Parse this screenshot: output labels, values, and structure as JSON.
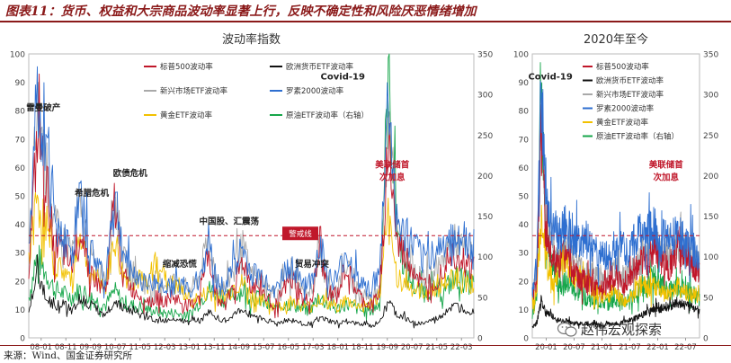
{
  "figure": {
    "title": "图表11：货币、权益和大宗商品波动率显著上行，反映不确定性和风险厌恶情绪增加",
    "source": "来源：Wind、国金证券研究所",
    "watermark": "赵伟宏观探索",
    "colors": {
      "sp500": "#c0172a",
      "eurofx": "#111111",
      "em": "#a9a9a9",
      "r2000": "#2e6fd0",
      "gold": "#f2c100",
      "oil": "#16a64a",
      "warn": "#c0172a",
      "frame": "#8b1a1a"
    }
  },
  "chart_data": [
    {
      "type": "line",
      "title": "波动率指数",
      "y_left": {
        "ylim": [
          0,
          100
        ],
        "ticks": [
          0,
          10,
          20,
          30,
          40,
          50,
          60,
          70,
          80,
          90,
          100
        ]
      },
      "y_right": {
        "ylim": [
          0,
          350
        ],
        "ticks": [
          0,
          50,
          100,
          150,
          200,
          250,
          300,
          350
        ]
      },
      "x_ticks": [
        "08-01",
        "08-11",
        "09-09",
        "10-07",
        "11-05",
        "12-03",
        "13-01",
        "13-11",
        "14-09",
        "15-07",
        "16-05",
        "17-03",
        "18-01",
        "18-11",
        "19-09",
        "20-07",
        "21-05",
        "22-03"
      ],
      "threshold": {
        "value": 36,
        "label": "警戒线"
      },
      "legend": [
        {
          "key": "sp500",
          "label": "标普500波动率"
        },
        {
          "key": "eurofx",
          "label": "欧洲货币ETF波动率"
        },
        {
          "key": "em",
          "label": "新兴市场ETF波动率"
        },
        {
          "key": "r2000",
          "label": "罗素2000波动率"
        },
        {
          "key": "gold",
          "label": "黄金ETF波动率"
        },
        {
          "key": "oil",
          "label": "原油ETF波动率（右轴）"
        }
      ],
      "annotations": [
        "雷曼破产",
        "希腊危机",
        "欧债危机",
        "缩减恐慌",
        "中国股、汇震荡",
        "贸易冲突",
        "Covid-19",
        "美联储首次加息"
      ],
      "events": [
        {
          "x": 0.09,
          "y": 80,
          "label": "雷曼破产"
        },
        {
          "x": 2.05,
          "y": 50,
          "label": "希腊危机"
        },
        {
          "x": 3.6,
          "y": 57,
          "label": "欧债危机"
        },
        {
          "x": 5.6,
          "y": 25,
          "label": "缩减恐慌"
        },
        {
          "x": 7.6,
          "y": 40,
          "label": "中国股、汇震荡"
        },
        {
          "x": 10.95,
          "y": 25,
          "label": "贸易冲突"
        },
        {
          "x": 12.2,
          "y": 91,
          "label": "Covid-19"
        },
        {
          "x": 14.2,
          "y": 60,
          "label": "美联储首次加息"
        }
      ],
      "series": [
        {
          "key": "sp500",
          "values": [
            24,
            70,
            55,
            33,
            30,
            24,
            40,
            25,
            19,
            16,
            48,
            22,
            17,
            15,
            13,
            14,
            13,
            14,
            12,
            11,
            16,
            30,
            14,
            12,
            20,
            27,
            18,
            18,
            13,
            12,
            18,
            20,
            13,
            13,
            30,
            16,
            14,
            25,
            18,
            13,
            11,
            16,
            70,
            34,
            28,
            24,
            18,
            20,
            22,
            30,
            30,
            26,
            25
          ]
        },
        {
          "key": "eurofx",
          "values": [
            9,
            22,
            15,
            11,
            12,
            10,
            14,
            12,
            10,
            8,
            13,
            11,
            9,
            8,
            7,
            6,
            6,
            7,
            6,
            7,
            6,
            9,
            7,
            6,
            8,
            10,
            8,
            7,
            6,
            5,
            6,
            6,
            5,
            5,
            7,
            6,
            5,
            6,
            5,
            5,
            4,
            6,
            13,
            8,
            7,
            5,
            5,
            6,
            7,
            10,
            11,
            10,
            9
          ]
        },
        {
          "key": "em",
          "values": [
            30,
            80,
            60,
            40,
            34,
            30,
            45,
            30,
            24,
            22,
            50,
            28,
            22,
            20,
            19,
            20,
            19,
            20,
            18,
            17,
            22,
            35,
            19,
            17,
            26,
            32,
            22,
            21,
            17,
            15,
            21,
            22,
            16,
            17,
            30,
            18,
            16,
            26,
            19,
            15,
            14,
            19,
            75,
            38,
            30,
            26,
            20,
            22,
            24,
            32,
            34,
            30,
            28
          ]
        },
        {
          "key": "r2000",
          "values": [
            30,
            85,
            65,
            42,
            36,
            30,
            50,
            32,
            26,
            22,
            52,
            30,
            23,
            21,
            19,
            19,
            18,
            19,
            18,
            17,
            22,
            34,
            19,
            18,
            27,
            31,
            22,
            22,
            19,
            17,
            24,
            25,
            20,
            19,
            33,
            21,
            20,
            30,
            23,
            19,
            17,
            22,
            85,
            40,
            34,
            32,
            28,
            29,
            31,
            35,
            36,
            33,
            32
          ]
        },
        {
          "key": "gold",
          "values": [
            28,
            50,
            38,
            26,
            24,
            20,
            38,
            24,
            20,
            18,
            35,
            22,
            20,
            20,
            19,
            30,
            20,
            18,
            16,
            13,
            14,
            16,
            15,
            14,
            18,
            19,
            15,
            14,
            12,
            11,
            12,
            13,
            11,
            11,
            14,
            12,
            11,
            13,
            12,
            11,
            12,
            15,
            40,
            22,
            19,
            17,
            16,
            17,
            18,
            20,
            22,
            20,
            19
          ]
        },
        {
          "key": "oil",
          "values": [
            50,
            100,
            80,
            60,
            55,
            50,
            60,
            52,
            45,
            40,
            58,
            45,
            40,
            38,
            35,
            32,
            30,
            31,
            28,
            30,
            45,
            60,
            55,
            45,
            55,
            58,
            50,
            48,
            38,
            35,
            42,
            40,
            35,
            36,
            50,
            40,
            35,
            42,
            38,
            33,
            34,
            42,
            320,
            140,
            80,
            65,
            55,
            60,
            55,
            65,
            75,
            70,
            65
          ]
        }
      ]
    },
    {
      "type": "line",
      "title": "2020年至今",
      "y_left": {
        "ylim": [
          0,
          100
        ],
        "ticks": [
          0,
          10,
          20,
          30,
          40,
          50,
          60,
          70,
          80,
          90,
          100
        ]
      },
      "y_right": {
        "ylim": [
          0,
          350
        ],
        "ticks": [
          0,
          50,
          100,
          150,
          200,
          250,
          300,
          350
        ]
      },
      "x_ticks": [
        "20-01",
        "20-07",
        "21-01",
        "21-07",
        "22-01",
        "22-07"
      ],
      "threshold": {
        "value": 36
      },
      "legend": [
        {
          "key": "sp500",
          "label": "标普500波动率"
        },
        {
          "key": "eurofx",
          "label": "欧洲货币ETF波动率"
        },
        {
          "key": "em",
          "label": "新兴市场ETF波动率"
        },
        {
          "key": "r2000",
          "label": "罗素2000波动率"
        },
        {
          "key": "gold",
          "label": "黄金ETF波动率"
        },
        {
          "key": "oil",
          "label": "原油ETF波动率（右轴）"
        }
      ],
      "annotations": [
        "Covid-19",
        "美联储首次加息"
      ],
      "events": [
        {
          "x": 0.15,
          "y": 91,
          "label": "Covid-19"
        },
        {
          "x": 4.3,
          "y": 60,
          "label": "美联储首次加息"
        }
      ],
      "series": [
        {
          "key": "sp500",
          "values": [
            14,
            20,
            75,
            40,
            30,
            28,
            25,
            30,
            28,
            24,
            22,
            20,
            20,
            19,
            18,
            17,
            19,
            18,
            20,
            22,
            19,
            18,
            22,
            24,
            26,
            28,
            25,
            30,
            33,
            28,
            26,
            24,
            28,
            32,
            30,
            27,
            26,
            24,
            22
          ]
        },
        {
          "key": "eurofx",
          "values": [
            4,
            5,
            13,
            9,
            8,
            7,
            6,
            6,
            6,
            5,
            5,
            5,
            5,
            5,
            5,
            5,
            4,
            5,
            5,
            5,
            5,
            6,
            6,
            7,
            7,
            8,
            9,
            10,
            11,
            10,
            11,
            11,
            12,
            12,
            12,
            11,
            11,
            10,
            10
          ]
        },
        {
          "key": "em",
          "values": [
            15,
            22,
            80,
            45,
            35,
            32,
            30,
            32,
            30,
            28,
            26,
            25,
            24,
            23,
            22,
            22,
            21,
            21,
            22,
            24,
            22,
            21,
            24,
            26,
            28,
            30,
            28,
            31,
            34,
            31,
            30,
            28,
            30,
            33,
            32,
            30,
            29,
            27,
            25
          ]
        },
        {
          "key": "r2000",
          "values": [
            17,
            25,
            88,
            55,
            42,
            38,
            36,
            38,
            40,
            36,
            34,
            33,
            36,
            34,
            30,
            31,
            30,
            29,
            28,
            30,
            32,
            30,
            31,
            34,
            36,
            38,
            36,
            40,
            38,
            35,
            36,
            34,
            35,
            38,
            36,
            34,
            33,
            30,
            28
          ]
        },
        {
          "key": "gold",
          "values": [
            12,
            16,
            42,
            28,
            22,
            20,
            24,
            28,
            26,
            22,
            20,
            21,
            19,
            18,
            17,
            16,
            15,
            14,
            16,
            15,
            14,
            13,
            14,
            15,
            18,
            20,
            17,
            19,
            18,
            16,
            15,
            16,
            17,
            18,
            17,
            16,
            15,
            15,
            14
          ]
        },
        {
          "key": "oil",
          "values": [
            30,
            50,
            330,
            150,
            100,
            80,
            70,
            65,
            70,
            60,
            55,
            55,
            50,
            48,
            45,
            44,
            43,
            42,
            45,
            48,
            45,
            44,
            48,
            52,
            60,
            65,
            58,
            70,
            75,
            65,
            62,
            58,
            60,
            65,
            60,
            58,
            55,
            52,
            50
          ]
        }
      ]
    }
  ]
}
